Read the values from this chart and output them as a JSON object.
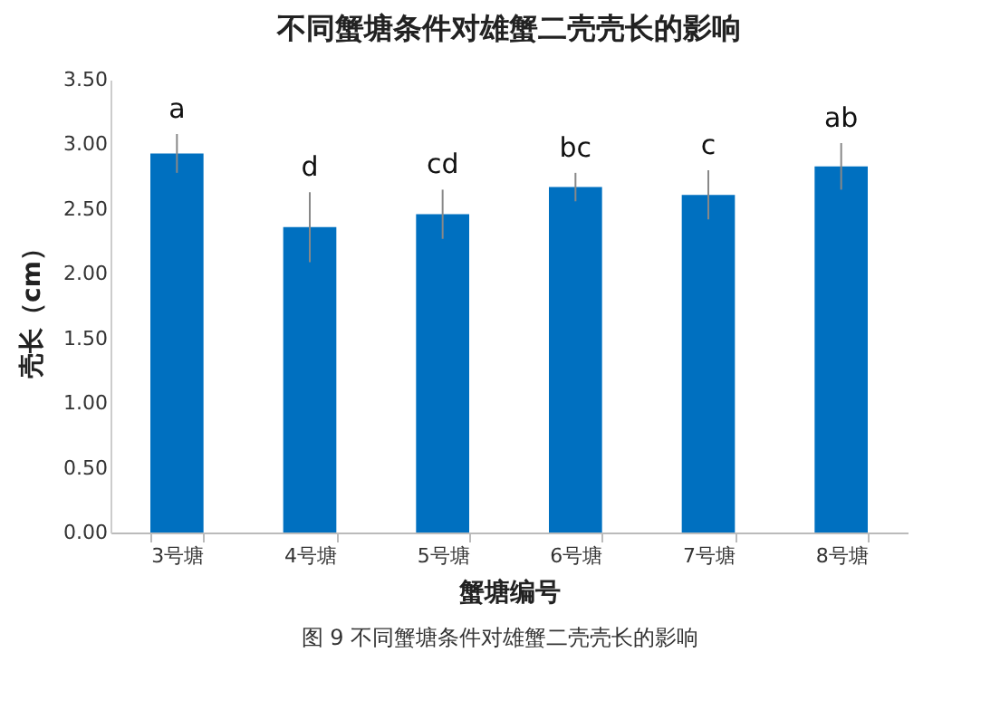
{
  "chart_data": {
    "type": "bar",
    "title": "不同蟹塘条件对雄蟹二壳壳长的影响",
    "xlabel": "蟹塘编号",
    "ylabel": "壳长（cm）",
    "categories": [
      "3号塘",
      "4号塘",
      "5号塘",
      "6号塘",
      "7号塘",
      "8号塘"
    ],
    "values": [
      2.93,
      2.36,
      2.46,
      2.67,
      2.61,
      2.83
    ],
    "errors": [
      0.15,
      0.27,
      0.19,
      0.11,
      0.19,
      0.18
    ],
    "color": "#0070c0",
    "ylim": [
      0,
      3.5
    ],
    "yticks": [
      {
        "value": 0,
        "label": "0.00"
      },
      {
        "value": 0.5,
        "label": "0.50"
      },
      {
        "value": 1,
        "label": "1.00"
      },
      {
        "value": 1.5,
        "label": "1.50"
      },
      {
        "value": 2,
        "label": "2.00"
      },
      {
        "value": 2.5,
        "label": "2.50"
      },
      {
        "value": 3,
        "label": "3.00"
      },
      {
        "value": 3.5,
        "label": "3.50"
      }
    ],
    "grid": false,
    "annotations": [
      {
        "text": "a",
        "x": "3号塘",
        "y": 3.08
      },
      {
        "text": "d",
        "x": "4号塘",
        "y": 2.63
      },
      {
        "text": "cd",
        "x": "5号塘",
        "y": 2.65
      },
      {
        "text": "bc",
        "x": "6号塘",
        "y": 2.78
      },
      {
        "text": "c",
        "x": "7号塘",
        "y": 2.8
      },
      {
        "text": "ab",
        "x": "8号塘",
        "y": 3.01
      },
      "图 9 不同蟹塘条件对雄蟹二壳壳长的影响"
    ]
  }
}
